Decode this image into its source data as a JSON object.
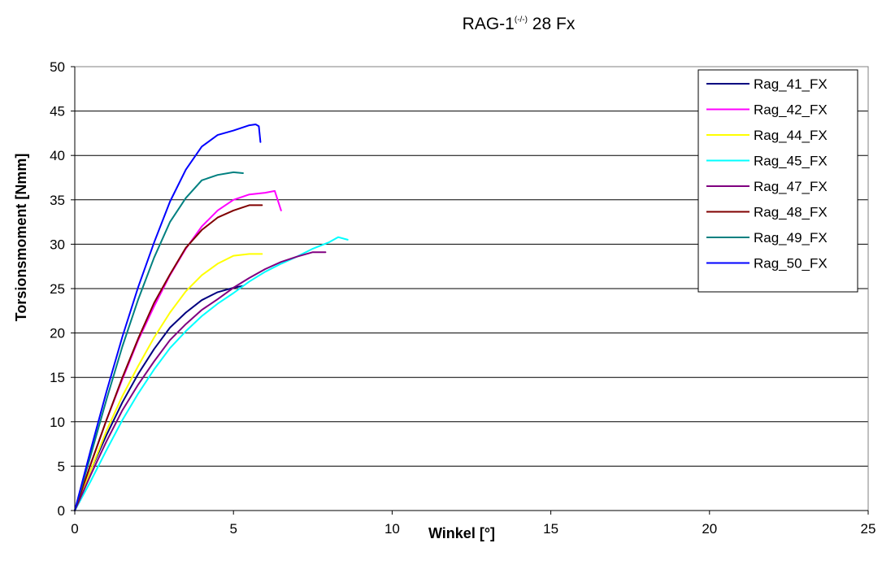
{
  "chart_data": {
    "type": "line",
    "title_main": "RAG-1",
    "title_sup": "(-/-)",
    "title_tail": " 28 Fx",
    "xlabel": "Winkel [°]",
    "ylabel": "Torsionsmoment [Nmm]",
    "xlim": [
      0,
      25
    ],
    "ylim": [
      0,
      50
    ],
    "xticks": [
      0,
      5,
      10,
      15,
      20,
      25
    ],
    "yticks": [
      0,
      5,
      10,
      15,
      20,
      25,
      30,
      35,
      40,
      45,
      50
    ],
    "grid": "horizontal",
    "legend_position": "top-right",
    "series": [
      {
        "name": "Rag_41_FX",
        "color": "#000080",
        "x": [
          0,
          0.5,
          1,
          1.5,
          2,
          2.5,
          3,
          3.5,
          4,
          4.5,
          5,
          5.3
        ],
        "y": [
          0,
          4.5,
          8.5,
          12.2,
          15.4,
          18.2,
          20.6,
          22.3,
          23.7,
          24.6,
          25.1,
          25.3
        ]
      },
      {
        "name": "Rag_42_FX",
        "color": "#ff00ff",
        "x": [
          0,
          0.5,
          1,
          1.5,
          2,
          2.5,
          3,
          3.5,
          4,
          4.5,
          5,
          5.5,
          6,
          6.3,
          6.5
        ],
        "y": [
          0,
          5.2,
          10.2,
          14.8,
          19.2,
          23,
          26.5,
          29.5,
          32,
          33.8,
          35,
          35.6,
          35.8,
          36,
          33.8
        ]
      },
      {
        "name": "Rag_44_FX",
        "color": "#ffff00",
        "x": [
          0,
          0.5,
          1,
          1.5,
          2,
          2.5,
          3,
          3.5,
          4,
          4.5,
          5,
          5.5,
          5.9
        ],
        "y": [
          0,
          4.5,
          9,
          12.9,
          16.3,
          19.5,
          22.3,
          24.7,
          26.5,
          27.8,
          28.7,
          28.9,
          28.9
        ]
      },
      {
        "name": "Rag_45_FX",
        "color": "#00ffff",
        "x": [
          0,
          0.5,
          1,
          1.5,
          2,
          2.5,
          3,
          3.5,
          4,
          4.5,
          5,
          5.5,
          6,
          6.5,
          7,
          7.5,
          8,
          8.3,
          8.6
        ],
        "y": [
          0,
          3.3,
          6.8,
          10.2,
          13.2,
          15.9,
          18.3,
          20.2,
          21.9,
          23.3,
          24.5,
          25.8,
          26.9,
          27.8,
          28.6,
          29.5,
          30.2,
          30.8,
          30.5
        ]
      },
      {
        "name": "Rag_47_FX",
        "color": "#800080",
        "x": [
          0,
          0.5,
          1,
          1.5,
          2,
          2.5,
          3,
          3.5,
          4,
          4.5,
          5,
          5.5,
          6,
          6.5,
          7,
          7.5,
          7.9
        ],
        "y": [
          0,
          4,
          7.8,
          11.3,
          14.2,
          16.8,
          19.2,
          21,
          22.6,
          23.8,
          25.1,
          26.2,
          27.2,
          28,
          28.6,
          29.1,
          29.1
        ]
      },
      {
        "name": "Rag_48_FX",
        "color": "#800000",
        "x": [
          0,
          0.5,
          1,
          1.5,
          2,
          2.5,
          3,
          3.5,
          4,
          4.5,
          5,
          5.5,
          5.9
        ],
        "y": [
          0,
          5.2,
          10.2,
          15,
          19.4,
          23.4,
          26.6,
          29.6,
          31.6,
          33,
          33.8,
          34.4,
          34.4
        ]
      },
      {
        "name": "Rag_49_FX",
        "color": "#008080",
        "x": [
          0,
          0.5,
          1,
          1.5,
          2,
          2.5,
          3,
          3.5,
          4,
          4.5,
          5,
          5.3
        ],
        "y": [
          0,
          6.2,
          12.5,
          18.5,
          23.8,
          28.5,
          32.5,
          35.2,
          37.2,
          37.8,
          38.1,
          38
        ]
      },
      {
        "name": "Rag_50_FX",
        "color": "#0000ff",
        "x": [
          0,
          0.5,
          1,
          1.5,
          2,
          2.5,
          3,
          3.5,
          4,
          4.5,
          5,
          5.5,
          5.7,
          5.8,
          5.85
        ],
        "y": [
          0,
          6.8,
          13.4,
          19.6,
          25.2,
          30.2,
          34.8,
          38.4,
          41,
          42.3,
          42.8,
          43.4,
          43.5,
          43.3,
          41.5
        ]
      }
    ]
  }
}
